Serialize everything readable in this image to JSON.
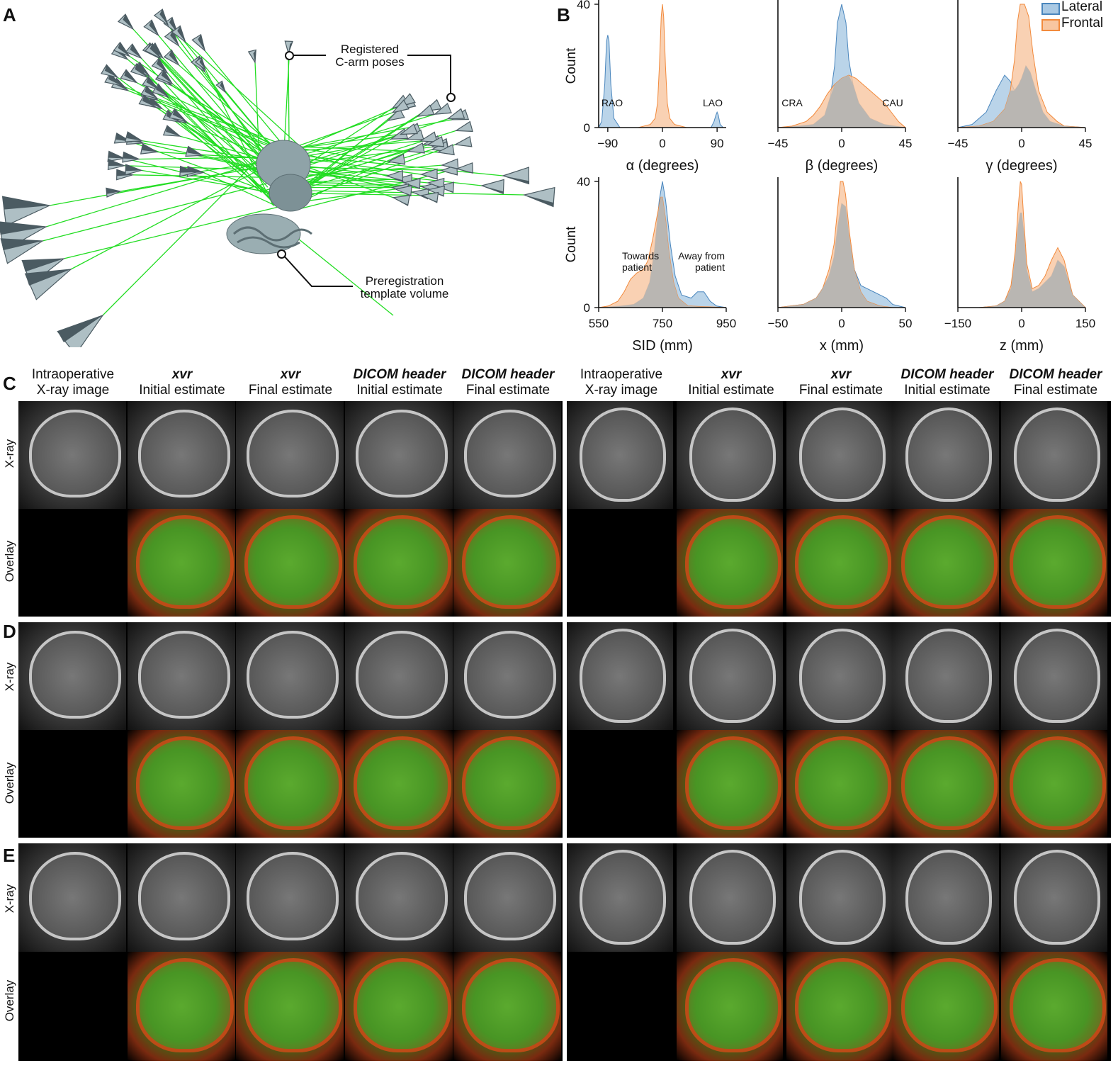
{
  "panels": {
    "a": "A",
    "b": "B",
    "c": "C",
    "d": "D",
    "e": "E"
  },
  "panel_a": {
    "callout_poses_line1": "Registered",
    "callout_poses_line2": "C-arm poses",
    "callout_volume_line1": "Preregistration",
    "callout_volume_line2": "template volume",
    "colors": {
      "rays": "#22dd22",
      "pyramids": "#aebfc4",
      "pyramid_dark": "#4b5b62",
      "skull": "#8fa3a8"
    }
  },
  "legend": {
    "lateral": "Lateral",
    "frontal": "Frontal"
  },
  "colors": {
    "lateral": "#a9c9e4",
    "lateral_edge": "#4a86bd",
    "frontal": "#f8c6a0",
    "frontal_edge": "#f28a3c",
    "overlap": "#b6b5b2"
  },
  "chart_data": [
    {
      "type": "area",
      "xlabel": "α (degrees)",
      "ylabel": "Count",
      "xlim": [
        -105,
        105
      ],
      "ylim": [
        0,
        40
      ],
      "xticks": [
        "−90",
        "0",
        "90"
      ],
      "xtickvals": [
        -90,
        0,
        90
      ],
      "yticks": [
        "0",
        "40"
      ],
      "annotations": [
        "RAO",
        "LAO"
      ],
      "series": [
        {
          "name": "Lateral",
          "x": [
            -105,
            -100,
            -95,
            -92,
            -90,
            -88,
            -85,
            -80,
            -70,
            -50,
            0,
            50,
            80,
            85,
            88,
            90,
            92,
            95,
            100,
            105
          ],
          "values": [
            0,
            2,
            14,
            28,
            30,
            28,
            14,
            3,
            0,
            0,
            0,
            0,
            0,
            2,
            4,
            5,
            4,
            1,
            0,
            0
          ]
        },
        {
          "name": "Frontal",
          "x": [
            -105,
            -40,
            -30,
            -20,
            -12,
            -8,
            -5,
            -2,
            0,
            2,
            5,
            8,
            12,
            20,
            30,
            40,
            105
          ],
          "values": [
            0,
            0,
            0.5,
            1,
            3,
            8,
            20,
            36,
            40,
            36,
            20,
            8,
            3,
            1,
            0.5,
            0,
            0
          ]
        }
      ]
    },
    {
      "type": "area",
      "xlabel": "β (degrees)",
      "ylabel": "",
      "xlim": [
        -45,
        45
      ],
      "ylim": [
        0,
        40
      ],
      "xticks": [
        "−45",
        "0",
        "45"
      ],
      "xtickvals": [
        -45,
        0,
        45
      ],
      "yticks": [],
      "annotations": [
        "CRA",
        "CAU"
      ],
      "series": [
        {
          "name": "Lateral",
          "x": [
            -45,
            -30,
            -20,
            -12,
            -8,
            -5,
            -3,
            0,
            3,
            5,
            8,
            12,
            20,
            30,
            45
          ],
          "values": [
            0,
            0.5,
            1,
            4,
            10,
            20,
            34,
            40,
            34,
            22,
            14,
            8,
            3,
            1,
            0
          ]
        },
        {
          "name": "Frontal",
          "x": [
            -45,
            -35,
            -25,
            -20,
            -15,
            -10,
            -5,
            0,
            5,
            10,
            15,
            20,
            25,
            30,
            35,
            40,
            45
          ],
          "values": [
            0,
            0.5,
            2,
            4,
            7,
            11,
            14,
            16,
            17,
            16,
            14,
            12,
            10,
            8,
            5,
            2,
            0
          ]
        }
      ]
    },
    {
      "type": "area",
      "xlabel": "γ (degrees)",
      "ylabel": "",
      "xlim": [
        -45,
        45
      ],
      "ylim": [
        0,
        40
      ],
      "xticks": [
        "−45",
        "0",
        "45"
      ],
      "xtickvals": [
        -45,
        0,
        45
      ],
      "yticks": [],
      "series": [
        {
          "name": "Lateral",
          "x": [
            -45,
            -35,
            -25,
            -18,
            -12,
            -8,
            -5,
            -2,
            0,
            3,
            6,
            10,
            15,
            20,
            30,
            45
          ],
          "values": [
            0,
            1,
            5,
            12,
            17,
            15,
            12,
            14,
            16,
            20,
            18,
            12,
            5,
            2,
            0.5,
            0
          ]
        },
        {
          "name": "Frontal",
          "x": [
            -45,
            -30,
            -20,
            -12,
            -8,
            -5,
            -3,
            -1,
            0,
            2,
            5,
            8,
            12,
            18,
            25,
            30,
            45
          ],
          "values": [
            0,
            0.5,
            2,
            6,
            12,
            22,
            34,
            40,
            40,
            40,
            36,
            24,
            12,
            5,
            2,
            0.5,
            0
          ]
        }
      ]
    },
    {
      "type": "area",
      "xlabel": "SID (mm)",
      "ylabel": "Count",
      "xlim": [
        550,
        950
      ],
      "ylim": [
        0,
        40
      ],
      "xticks": [
        "550",
        "750",
        "950"
      ],
      "xtickvals": [
        550,
        750,
        950
      ],
      "yticks": [
        "0",
        "40"
      ],
      "annotations": [
        "Towards patient",
        "Away from patient"
      ],
      "series": [
        {
          "name": "Lateral",
          "x": [
            550,
            620,
            660,
            690,
            710,
            725,
            740,
            750,
            760,
            775,
            790,
            810,
            840,
            860,
            880,
            900,
            920,
            950
          ],
          "values": [
            0,
            0.5,
            1,
            3,
            8,
            18,
            34,
            40,
            34,
            20,
            10,
            4,
            3,
            5,
            5,
            2,
            0.5,
            0
          ]
        },
        {
          "name": "Frontal",
          "x": [
            550,
            580,
            610,
            630,
            650,
            670,
            690,
            705,
            720,
            735,
            745,
            750,
            760,
            770,
            785,
            800,
            830,
            950
          ],
          "values": [
            0,
            0.5,
            2,
            5,
            9,
            11,
            12,
            15,
            22,
            30,
            35,
            35,
            28,
            18,
            8,
            3,
            0.5,
            0
          ]
        }
      ]
    },
    {
      "type": "area",
      "xlabel": "x (mm)",
      "ylabel": "",
      "xlim": [
        -50,
        50
      ],
      "ylim": [
        0,
        40
      ],
      "xticks": [
        "−50",
        "0",
        "50"
      ],
      "xtickvals": [
        -50,
        0,
        50
      ],
      "yticks": [],
      "series": [
        {
          "name": "Lateral",
          "x": [
            -50,
            -40,
            -30,
            -20,
            -15,
            -10,
            -6,
            -3,
            0,
            3,
            6,
            10,
            15,
            20,
            25,
            30,
            35,
            40,
            50
          ],
          "values": [
            0,
            0.5,
            1,
            3,
            6,
            10,
            16,
            26,
            33,
            32,
            22,
            12,
            7,
            6,
            5,
            4,
            3,
            1,
            0
          ]
        },
        {
          "name": "Frontal",
          "x": [
            -50,
            -40,
            -30,
            -20,
            -15,
            -10,
            -6,
            -3,
            -1,
            1,
            3,
            6,
            10,
            15,
            20,
            30,
            40,
            50
          ],
          "values": [
            0,
            0.5,
            1,
            3,
            6,
            12,
            20,
            32,
            40,
            40,
            36,
            24,
            12,
            5,
            2,
            0.5,
            0,
            0
          ]
        }
      ]
    },
    {
      "type": "area",
      "xlabel": "z (mm)",
      "ylabel": "",
      "xlim": [
        -150,
        150
      ],
      "ylim": [
        0,
        40
      ],
      "xticks": [
        "−150",
        "0",
        "150"
      ],
      "xtickvals": [
        -150,
        0,
        150
      ],
      "yticks": [],
      "series": [
        {
          "name": "Lateral",
          "x": [
            -150,
            -100,
            -60,
            -40,
            -25,
            -15,
            -8,
            -3,
            0,
            5,
            12,
            25,
            40,
            55,
            70,
            85,
            100,
            120,
            150
          ],
          "values": [
            0,
            0,
            0.5,
            2,
            6,
            16,
            26,
            30,
            30,
            24,
            12,
            5,
            6,
            8,
            10,
            15,
            13,
            4,
            0
          ]
        },
        {
          "name": "Frontal",
          "x": [
            -150,
            -100,
            -60,
            -40,
            -25,
            -15,
            -8,
            -3,
            0,
            5,
            12,
            25,
            40,
            55,
            70,
            85,
            100,
            120,
            150
          ],
          "values": [
            0,
            0,
            0.5,
            2,
            7,
            18,
            32,
            40,
            39,
            28,
            14,
            6,
            7,
            10,
            15,
            19,
            15,
            4,
            0
          ]
        }
      ]
    }
  ],
  "panel_c_headers": {
    "left": [
      {
        "em": "",
        "line1": "Intraoperative",
        "line2": "X-ray image"
      },
      {
        "em": "xvr",
        "line1": "",
        "line2": "Initial estimate"
      },
      {
        "em": "xvr",
        "line1": "",
        "line2": "Final estimate"
      },
      {
        "em": "DICOM header",
        "line1": "",
        "line2": "Initial estimate"
      },
      {
        "em": "DICOM header",
        "line1": "",
        "line2": "Final estimate"
      }
    ],
    "right": [
      {
        "em": "",
        "line1": "Intraoperative",
        "line2": "X-ray image"
      },
      {
        "em": "xvr",
        "line1": "",
        "line2": "Initial estimate"
      },
      {
        "em": "xvr",
        "line1": "",
        "line2": "Final estimate"
      },
      {
        "em": "DICOM header",
        "line1": "",
        "line2": "Initial estimate"
      },
      {
        "em": "DICOM header",
        "line1": "",
        "line2": "Final estimate"
      }
    ]
  },
  "row_labels": {
    "xray": "X-ray",
    "overlay": "Overlay"
  }
}
